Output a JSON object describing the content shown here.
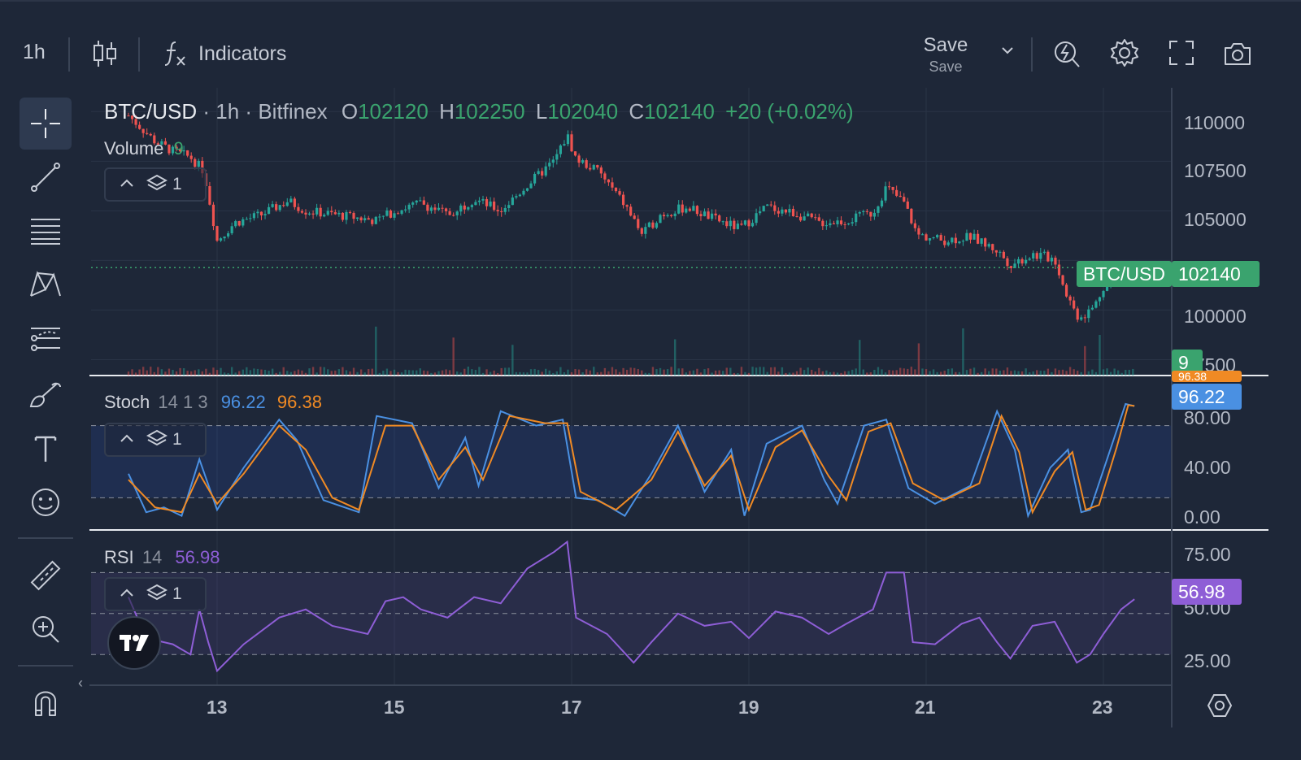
{
  "toolbar": {
    "interval": "1h",
    "indicators_label": "Indicators",
    "save_label": "Save",
    "save_sublabel": "Save"
  },
  "legend": {
    "symbol": "BTC/USD",
    "sep1": "·",
    "interval": "1h",
    "sep2": "·",
    "exchange": "Bitfinex",
    "o_label": "O",
    "o_value": "102120",
    "h_label": "H",
    "h_value": "102250",
    "l_label": "L",
    "l_value": "102040",
    "c_label": "C",
    "c_value": "102140",
    "change": "+20 (+0.02%)"
  },
  "volume": {
    "label": "Volume",
    "value": "9"
  },
  "stoch": {
    "label": "Stoch",
    "params": "14 1 3",
    "k_value": "96.22",
    "d_value": "96.38"
  },
  "rsi": {
    "label": "RSI",
    "params": "14",
    "value": "56.98"
  },
  "pane_controls": {
    "layers_count": "1"
  },
  "price_axis": {
    "labels": [
      "110000",
      "107500",
      "105000",
      "102500",
      "100000",
      "97500"
    ],
    "last_price_symbol": "BTC/USD",
    "last_price": "102140",
    "volume_tag": "9"
  },
  "stoch_axis": {
    "labels": [
      "80.00",
      "40.00",
      "0.00"
    ],
    "k_tag": "96.22",
    "d_tag": "96.38"
  },
  "rsi_axis": {
    "labels": [
      "75.00",
      "50.00",
      "25.00"
    ],
    "rsi_tag": "56.98"
  },
  "time_axis": {
    "labels": [
      "13",
      "15",
      "17",
      "19",
      "21",
      "23"
    ]
  },
  "colors": {
    "background": "#1e2738",
    "up": "#26a69a",
    "down": "#ef5350",
    "stoch_k": "#4a90e2",
    "stoch_d": "#f08a24",
    "rsi": "#8e5ed6",
    "accent": "#3aa36e"
  },
  "chart_data": [
    {
      "type": "candlestick",
      "title": "BTC/USD · 1h · Bitfinex",
      "x_labels": [
        "13",
        "15",
        "17",
        "19",
        "21",
        "23"
      ],
      "y_ticks": [
        97500,
        100000,
        102500,
        105000,
        107500,
        110000
      ],
      "ylim": [
        96700,
        111200
      ],
      "close_path": [
        [
          12.0,
          109800
        ],
        [
          12.3,
          108500
        ],
        [
          12.5,
          108000
        ],
        [
          12.7,
          107700
        ],
        [
          12.85,
          107000
        ],
        [
          13.0,
          103500
        ],
        [
          13.2,
          104400
        ],
        [
          13.5,
          104800
        ],
        [
          13.8,
          105500
        ],
        [
          14.0,
          105000
        ],
        [
          14.5,
          104700
        ],
        [
          14.8,
          104500
        ],
        [
          15.0,
          105000
        ],
        [
          15.3,
          105400
        ],
        [
          15.6,
          104800
        ],
        [
          15.9,
          105600
        ],
        [
          16.2,
          105000
        ],
        [
          16.5,
          106300
        ],
        [
          16.8,
          107500
        ],
        [
          16.95,
          108800
        ],
        [
          17.05,
          107600
        ],
        [
          17.3,
          107000
        ],
        [
          17.6,
          105300
        ],
        [
          17.8,
          103800
        ],
        [
          18.0,
          104800
        ],
        [
          18.3,
          105200
        ],
        [
          18.6,
          104600
        ],
        [
          18.9,
          104100
        ],
        [
          19.2,
          105200
        ],
        [
          19.5,
          104900
        ],
        [
          19.8,
          104400
        ],
        [
          20.1,
          104500
        ],
        [
          20.4,
          104900
        ],
        [
          20.55,
          106200
        ],
        [
          20.75,
          105400
        ],
        [
          20.9,
          103800
        ],
        [
          21.2,
          103500
        ],
        [
          21.5,
          103700
        ],
        [
          21.8,
          103000
        ],
        [
          21.95,
          102300
        ],
        [
          22.2,
          102800
        ],
        [
          22.45,
          102600
        ],
        [
          22.55,
          101200
        ],
        [
          22.7,
          99700
        ],
        [
          22.8,
          99800
        ],
        [
          22.9,
          100200
        ],
        [
          23.0,
          101200
        ],
        [
          23.25,
          101900
        ],
        [
          23.35,
          102140
        ]
      ]
    },
    {
      "type": "bar",
      "title": "Volume",
      "last_value": 9
    },
    {
      "type": "line",
      "title": "Stoch 14 1 3",
      "ylim": [
        0,
        100
      ],
      "y_ticks": [
        0,
        40,
        80
      ],
      "bands": [
        20,
        80
      ],
      "series": [
        {
          "name": "%K",
          "last": 96.22,
          "points": [
            [
              12.0,
              40
            ],
            [
              12.2,
              8
            ],
            [
              12.4,
              12
            ],
            [
              12.6,
              5
            ],
            [
              12.8,
              52
            ],
            [
              13.0,
              10
            ],
            [
              13.3,
              45
            ],
            [
              13.7,
              85
            ],
            [
              13.9,
              68
            ],
            [
              14.2,
              18
            ],
            [
              14.6,
              8
            ],
            [
              14.8,
              88
            ],
            [
              15.2,
              82
            ],
            [
              15.5,
              28
            ],
            [
              15.8,
              70
            ],
            [
              15.95,
              30
            ],
            [
              16.2,
              92
            ],
            [
              16.6,
              80
            ],
            [
              16.9,
              85
            ],
            [
              17.05,
              20
            ],
            [
              17.3,
              18
            ],
            [
              17.6,
              5
            ],
            [
              17.9,
              40
            ],
            [
              18.2,
              80
            ],
            [
              18.5,
              25
            ],
            [
              18.8,
              60
            ],
            [
              18.95,
              5
            ],
            [
              19.2,
              65
            ],
            [
              19.6,
              80
            ],
            [
              19.85,
              35
            ],
            [
              20.0,
              15
            ],
            [
              20.3,
              80
            ],
            [
              20.55,
              85
            ],
            [
              20.8,
              28
            ],
            [
              21.1,
              15
            ],
            [
              21.5,
              30
            ],
            [
              21.8,
              92
            ],
            [
              22.0,
              60
            ],
            [
              22.15,
              5
            ],
            [
              22.4,
              45
            ],
            [
              22.6,
              60
            ],
            [
              22.75,
              8
            ],
            [
              22.85,
              10
            ],
            [
              23.1,
              65
            ],
            [
              23.25,
              98
            ],
            [
              23.35,
              96.22
            ]
          ]
        },
        {
          "name": "%D",
          "last": 96.38,
          "points": [
            [
              12.0,
              35
            ],
            [
              12.3,
              12
            ],
            [
              12.6,
              8
            ],
            [
              12.8,
              40
            ],
            [
              13.0,
              15
            ],
            [
              13.3,
              40
            ],
            [
              13.7,
              80
            ],
            [
              14.0,
              60
            ],
            [
              14.3,
              20
            ],
            [
              14.6,
              10
            ],
            [
              14.9,
              80
            ],
            [
              15.2,
              80
            ],
            [
              15.5,
              35
            ],
            [
              15.8,
              62
            ],
            [
              16.0,
              35
            ],
            [
              16.3,
              88
            ],
            [
              16.7,
              82
            ],
            [
              16.95,
              82
            ],
            [
              17.1,
              25
            ],
            [
              17.5,
              10
            ],
            [
              17.9,
              35
            ],
            [
              18.2,
              75
            ],
            [
              18.5,
              30
            ],
            [
              18.8,
              55
            ],
            [
              19.0,
              10
            ],
            [
              19.3,
              62
            ],
            [
              19.6,
              76
            ],
            [
              19.9,
              38
            ],
            [
              20.1,
              18
            ],
            [
              20.35,
              75
            ],
            [
              20.6,
              82
            ],
            [
              20.85,
              32
            ],
            [
              21.2,
              18
            ],
            [
              21.6,
              32
            ],
            [
              21.85,
              88
            ],
            [
              22.05,
              58
            ],
            [
              22.2,
              8
            ],
            [
              22.45,
              42
            ],
            [
              22.65,
              58
            ],
            [
              22.8,
              10
            ],
            [
              22.95,
              14
            ],
            [
              23.15,
              62
            ],
            [
              23.28,
              97
            ],
            [
              23.35,
              96.38
            ]
          ]
        }
      ]
    },
    {
      "type": "line",
      "title": "RSI 14",
      "ylim": [
        15,
        90
      ],
      "y_ticks": [
        25,
        50,
        75
      ],
      "bands": [
        30,
        70
      ],
      "series": [
        {
          "name": "RSI",
          "last": 56.98,
          "points": [
            [
              12.0,
              58
            ],
            [
              12.2,
              38
            ],
            [
              12.5,
              35
            ],
            [
              12.7,
              30
            ],
            [
              12.8,
              52
            ],
            [
              12.9,
              36
            ],
            [
              13.0,
              22
            ],
            [
              13.3,
              35
            ],
            [
              13.7,
              48
            ],
            [
              14.0,
              52
            ],
            [
              14.3,
              44
            ],
            [
              14.7,
              40
            ],
            [
              14.9,
              56
            ],
            [
              15.1,
              58
            ],
            [
              15.3,
              52
            ],
            [
              15.6,
              48
            ],
            [
              15.9,
              58
            ],
            [
              16.2,
              55
            ],
            [
              16.5,
              72
            ],
            [
              16.8,
              80
            ],
            [
              16.95,
              85
            ],
            [
              17.05,
              48
            ],
            [
              17.4,
              40
            ],
            [
              17.7,
              26
            ],
            [
              17.9,
              36
            ],
            [
              18.2,
              50
            ],
            [
              18.5,
              44
            ],
            [
              18.8,
              46
            ],
            [
              19.0,
              38
            ],
            [
              19.3,
              51
            ],
            [
              19.6,
              48
            ],
            [
              19.9,
              40
            ],
            [
              20.1,
              45
            ],
            [
              20.4,
              52
            ],
            [
              20.55,
              70
            ],
            [
              20.75,
              70
            ],
            [
              20.85,
              36
            ],
            [
              21.1,
              35
            ],
            [
              21.4,
              45
            ],
            [
              21.6,
              48
            ],
            [
              21.8,
              36
            ],
            [
              21.95,
              28
            ],
            [
              22.2,
              44
            ],
            [
              22.45,
              46
            ],
            [
              22.55,
              38
            ],
            [
              22.7,
              26
            ],
            [
              22.85,
              30
            ],
            [
              23.0,
              40
            ],
            [
              23.2,
              52
            ],
            [
              23.35,
              56.98
            ]
          ]
        }
      ]
    }
  ]
}
